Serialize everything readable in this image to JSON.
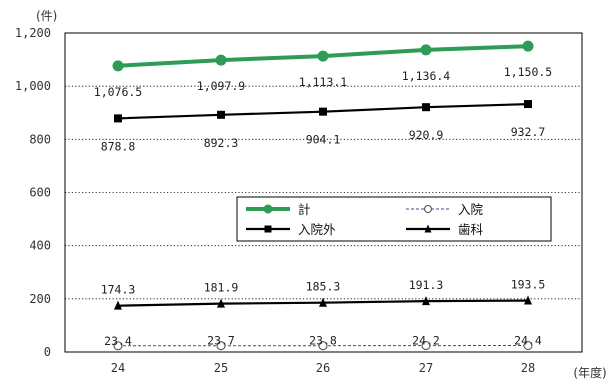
{
  "chart_data": {
    "type": "line",
    "y_unit": "(件)",
    "x_unit": "(年度)",
    "categories": [
      "24",
      "25",
      "26",
      "27",
      "28"
    ],
    "ylim": [
      0,
      1200
    ],
    "yticks": [
      0,
      200,
      400,
      600,
      800,
      1000,
      1200
    ],
    "ytick_labels": [
      "0",
      "200",
      "400",
      "600",
      "800",
      "1,000",
      "1,200"
    ],
    "grid": "horizontal dotted",
    "legend_position": "center-right",
    "series": [
      {
        "name": "計",
        "values": [
          1076.5,
          1097.9,
          1113.1,
          1136.4,
          1150.5
        ],
        "labels": [
          "1,076.5",
          "1,097.9",
          "1,113.1",
          "1,136.4",
          "1,150.5"
        ],
        "color": "#2e9c54",
        "marker": "circle-filled",
        "line": "solid"
      },
      {
        "name": "入院",
        "values": [
          23.4,
          23.7,
          23.8,
          24.2,
          24.4
        ],
        "labels": [
          "23.4",
          "23.7",
          "23.8",
          "24.2",
          "24.4"
        ],
        "color": "#3a4a9a",
        "marker": "circle-open",
        "line": "dashed"
      },
      {
        "name": "入院外",
        "values": [
          878.8,
          892.3,
          904.1,
          920.9,
          932.7
        ],
        "labels": [
          "878.8",
          "892.3",
          "904.1",
          "920.9",
          "932.7"
        ],
        "color": "#000000",
        "marker": "square",
        "line": "solid"
      },
      {
        "name": "歯科",
        "values": [
          174.3,
          181.9,
          185.3,
          191.3,
          193.5
        ],
        "labels": [
          "174.3",
          "181.9",
          "185.3",
          "191.3",
          "193.5"
        ],
        "color": "#000000",
        "marker": "triangle",
        "line": "solid"
      }
    ]
  }
}
